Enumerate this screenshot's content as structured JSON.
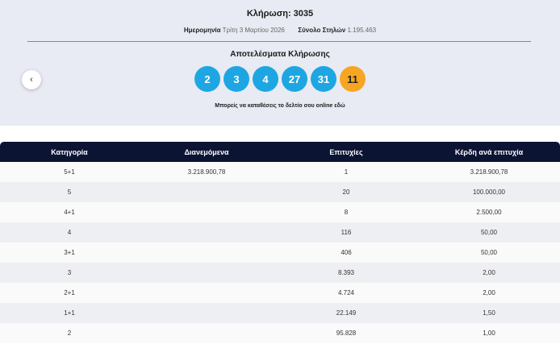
{
  "draw": {
    "title": "Κλήρωση: 3035",
    "date_label": "Ημερομηνία",
    "date_value": "Τρίτη 3 Μαρτίου 2026",
    "columns_label": "Σύνολο Στηλών",
    "columns_value": "1.195.463"
  },
  "results": {
    "heading": "Αποτελέσματα Κλήρωσης",
    "numbers": [
      "2",
      "3",
      "4",
      "27",
      "31"
    ],
    "bonus": "11",
    "online_text": "Μπορείς να καταθέσεις το δελτίο σου online εδώ",
    "colors": {
      "main": "#1ea6e3",
      "bonus": "#f6a623"
    }
  },
  "nav": {
    "prev_icon": "chevron-left-icon",
    "prev_glyph": "‹"
  },
  "table": {
    "headers": [
      "Κατηγορία",
      "Διανεμόμενα",
      "Επιτυχίες",
      "Κέρδη ανά επιτυχία"
    ],
    "rows": [
      [
        "5+1",
        "3.218.900,78",
        "1",
        "3.218.900,78"
      ],
      [
        "5",
        "",
        "20",
        "100.000,00"
      ],
      [
        "4+1",
        "",
        "8",
        "2.500,00"
      ],
      [
        "4",
        "",
        "116",
        "50,00"
      ],
      [
        "3+1",
        "",
        "406",
        "50,00"
      ],
      [
        "3",
        "",
        "8.393",
        "2,00"
      ],
      [
        "2+1",
        "",
        "4.724",
        "2,00"
      ],
      [
        "1+1",
        "",
        "22.149",
        "1,50"
      ],
      [
        "2",
        "",
        "95.828",
        "1,00"
      ]
    ]
  }
}
